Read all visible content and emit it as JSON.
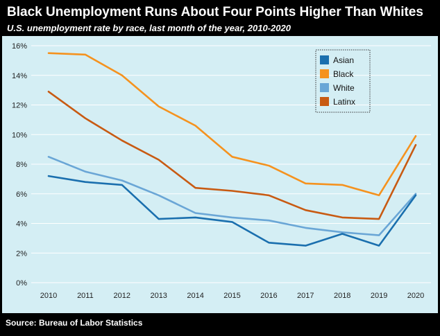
{
  "header": {
    "title": "Black Unemployment Runs About Four Points Higher Than Whites",
    "subtitle": "U.S. unemployment rate by race, last month of the year, 2010-2020"
  },
  "footer": {
    "source": "Source: Bureau of Labor Statistics"
  },
  "colors": {
    "background": "#d4eef4",
    "frame": "#000000",
    "gridline": "#ffffff"
  },
  "chart_data": {
    "type": "line",
    "title": "Black Unemployment Runs About Four Points Higher Than Whites",
    "subtitle": "U.S. unemployment rate by race, last month of the year, 2010-2020",
    "xlabel": "",
    "ylabel": "",
    "x": [
      "2010",
      "2011",
      "2012",
      "2013",
      "2014",
      "2015",
      "2016",
      "2017",
      "2018",
      "2019",
      "2020"
    ],
    "ylim": [
      0,
      16
    ],
    "yticks": [
      0,
      2,
      4,
      6,
      8,
      10,
      12,
      14,
      16
    ],
    "ytick_labels": [
      "0%",
      "2%",
      "4%",
      "6%",
      "8%",
      "10%",
      "12%",
      "14%",
      "16%"
    ],
    "grid": "horizontal",
    "legend_position": "top-right",
    "series": [
      {
        "name": "Asian",
        "color": "#1a6fae",
        "values": [
          7.2,
          6.8,
          6.6,
          4.3,
          4.4,
          4.1,
          2.7,
          2.5,
          3.3,
          2.5,
          5.9
        ]
      },
      {
        "name": "Black",
        "color": "#f5921e",
        "values": [
          15.5,
          15.4,
          14.0,
          11.9,
          10.6,
          8.5,
          7.9,
          6.7,
          6.6,
          5.9,
          9.9
        ]
      },
      {
        "name": "White",
        "color": "#6aa6d6",
        "values": [
          8.5,
          7.5,
          6.9,
          5.9,
          4.7,
          4.4,
          4.2,
          3.7,
          3.4,
          3.2,
          6.0
        ]
      },
      {
        "name": "Latinx",
        "color": "#c85a12",
        "values": [
          12.9,
          11.1,
          9.6,
          8.3,
          6.4,
          6.2,
          5.9,
          4.9,
          4.4,
          4.3,
          9.3
        ]
      }
    ]
  }
}
